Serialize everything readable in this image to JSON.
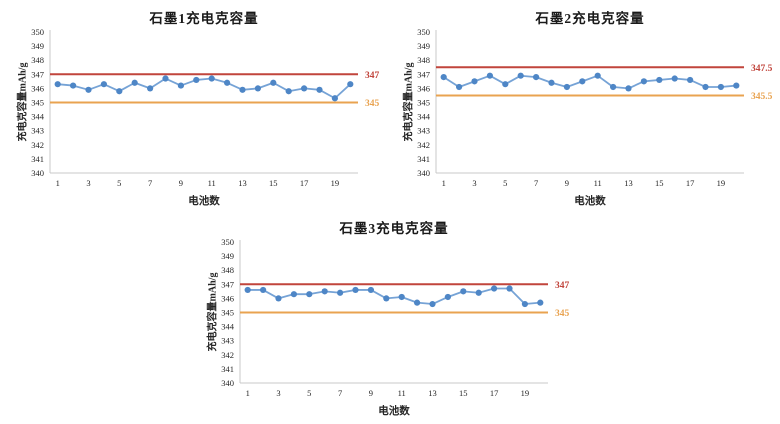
{
  "page": {
    "background": "#FFFFFF"
  },
  "colors": {
    "series_line": "#76A3D6",
    "series_marker": "#4E86C6",
    "upper_limit_line": "#C1453C",
    "lower_limit_line": "#E9A350",
    "axis_line": "#C9C9C9",
    "tick_text": "#262626",
    "title_text": "#1A1A1A"
  },
  "chart_data": [
    {
      "type": "line",
      "title": "石墨1充电克容量",
      "ylabel": "充电克容量mAh/g",
      "xlabel": "电池数",
      "ylim": [
        340,
        350
      ],
      "ytick_step": 1,
      "xticks_shown": [
        1,
        3,
        5,
        7,
        9,
        11,
        13,
        15,
        17,
        19
      ],
      "grid": false,
      "legend": "none",
      "x": [
        1,
        2,
        3,
        4,
        5,
        6,
        7,
        8,
        9,
        10,
        11,
        12,
        13,
        14,
        15,
        16,
        17,
        18,
        19,
        20
      ],
      "series": [
        {
          "name": "充电克容量",
          "values": [
            346.3,
            346.2,
            345.9,
            346.3,
            345.8,
            346.4,
            346.0,
            346.7,
            346.2,
            346.6,
            346.7,
            346.4,
            345.9,
            346.0,
            346.4,
            345.8,
            346.0,
            345.9,
            345.3,
            346.3
          ]
        }
      ],
      "reference_lines": [
        {
          "value": 347,
          "label": "347",
          "color": "#C1453C"
        },
        {
          "value": 345,
          "label": "345",
          "color": "#E9A350"
        }
      ]
    },
    {
      "type": "line",
      "title": "石墨2充电克容量",
      "ylabel": "充电克容量mAh/g",
      "xlabel": "电池数",
      "ylim": [
        340,
        350
      ],
      "ytick_step": 1,
      "xticks_shown": [
        1,
        3,
        5,
        7,
        9,
        11,
        13,
        15,
        17,
        19
      ],
      "grid": false,
      "legend": "none",
      "x": [
        1,
        2,
        3,
        4,
        5,
        6,
        7,
        8,
        9,
        10,
        11,
        12,
        13,
        14,
        15,
        16,
        17,
        18,
        19,
        20
      ],
      "series": [
        {
          "name": "充电克容量",
          "values": [
            346.8,
            346.1,
            346.5,
            346.9,
            346.3,
            346.9,
            346.8,
            346.4,
            346.1,
            346.5,
            346.9,
            346.1,
            346.0,
            346.5,
            346.6,
            346.7,
            346.6,
            346.1,
            346.1,
            346.2
          ]
        }
      ],
      "reference_lines": [
        {
          "value": 347.5,
          "label": "347.5",
          "color": "#C1453C"
        },
        {
          "value": 345.5,
          "label": "345.5",
          "color": "#E9A350"
        }
      ]
    },
    {
      "type": "line",
      "title": "石墨3充电克容量",
      "ylabel": "充电克容量mAh/g",
      "xlabel": "电池数",
      "ylim": [
        340,
        350
      ],
      "ytick_step": 1,
      "xticks_shown": [
        1,
        3,
        5,
        7,
        9,
        11,
        13,
        15,
        17,
        19
      ],
      "grid": false,
      "legend": "none",
      "x": [
        1,
        2,
        3,
        4,
        5,
        6,
        7,
        8,
        9,
        10,
        11,
        12,
        13,
        14,
        15,
        16,
        17,
        18,
        19,
        20
      ],
      "series": [
        {
          "name": "充电克容量",
          "values": [
            346.6,
            346.6,
            346.0,
            346.3,
            346.3,
            346.5,
            346.4,
            346.6,
            346.6,
            346.0,
            346.1,
            345.7,
            345.6,
            346.1,
            346.5,
            346.4,
            346.7,
            346.7,
            345.6,
            345.7
          ]
        }
      ],
      "reference_lines": [
        {
          "value": 347,
          "label": "347",
          "color": "#C1453C"
        },
        {
          "value": 345,
          "label": "345",
          "color": "#E9A350"
        }
      ]
    }
  ]
}
